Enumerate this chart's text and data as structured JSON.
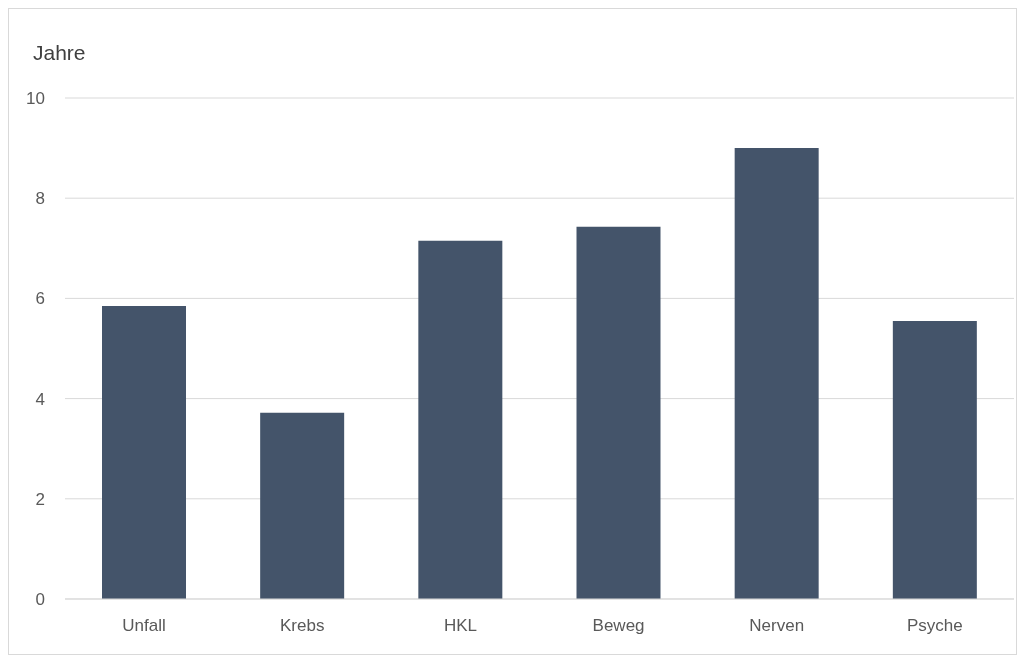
{
  "chart_data": {
    "type": "bar",
    "ylabel": "Jahre",
    "categories": [
      "Unfall",
      "Krebs",
      "HKL",
      "Beweg",
      "Nerven",
      "Psyche"
    ],
    "values": [
      5.85,
      3.72,
      7.15,
      7.43,
      9.0,
      5.55
    ],
    "color": "#44546a",
    "ylim": [
      0,
      10
    ],
    "yticks": [
      0,
      2,
      4,
      6,
      8,
      10
    ],
    "grid": "y"
  }
}
